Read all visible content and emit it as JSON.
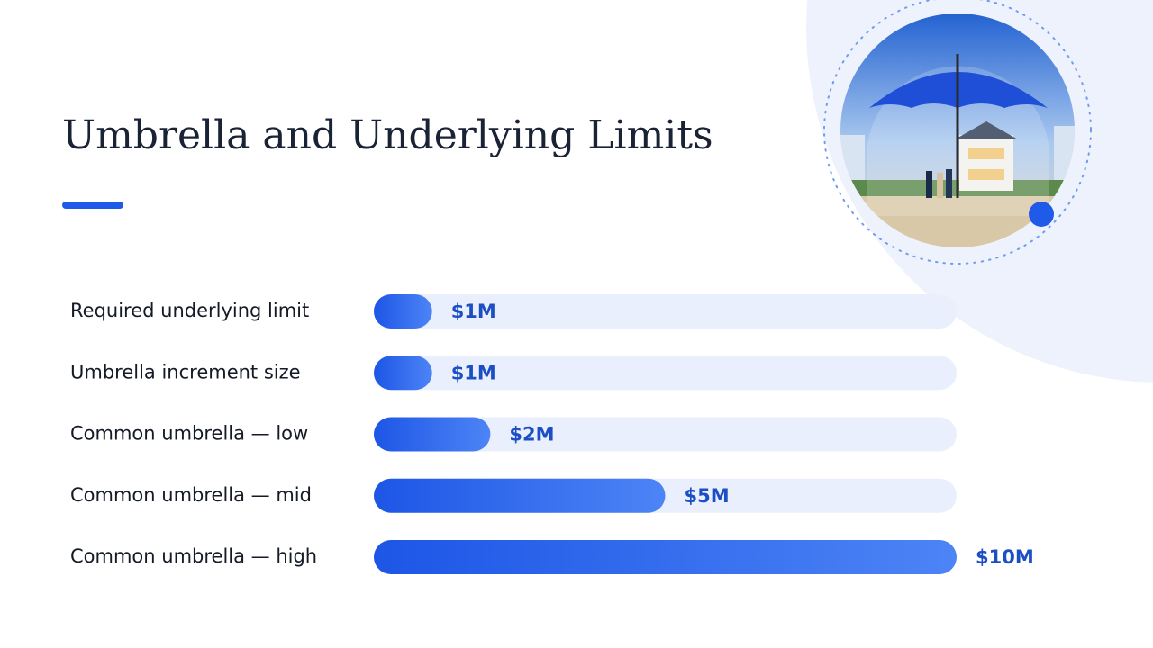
{
  "chart_data": {
    "type": "bar",
    "orientation": "horizontal",
    "title": "Umbrella and Underlying Limits",
    "categories": [
      "Required underlying limit",
      "Umbrella increment size",
      "Common umbrella — low",
      "Common umbrella — mid",
      "Common umbrella — high"
    ],
    "values": [
      1,
      1,
      2,
      5,
      10
    ],
    "value_labels": [
      "$1M",
      "$1M",
      "$2M",
      "$5M",
      "$10M"
    ],
    "xlim": [
      0,
      10
    ],
    "color": "#2a63ec"
  }
}
